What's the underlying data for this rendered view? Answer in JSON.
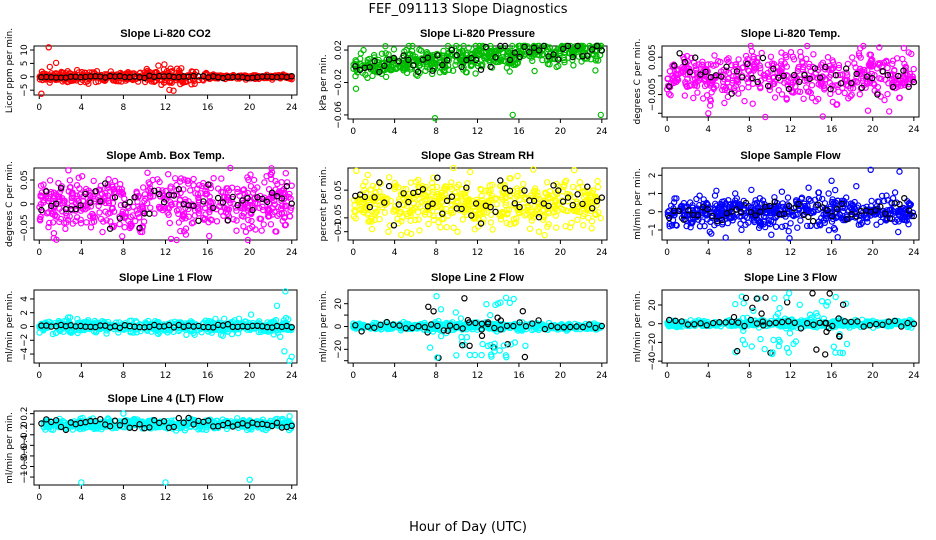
{
  "figure": {
    "title": "FEF_091113  Slope Diagnostics",
    "xlabel": "Hour of Day (UTC)"
  },
  "chart_data": [
    {
      "id": "co2",
      "type": "scatter",
      "title": "Slope Li-820 CO2",
      "ylabel": "Licor ppm per min.",
      "xticks": [
        0,
        4,
        8,
        12,
        16,
        20,
        24
      ],
      "xlim": [
        -0.5,
        24.5
      ],
      "yticks": [
        -5,
        0,
        5,
        10
      ],
      "ylim": [
        -6.8,
        11.5
      ],
      "color": "#ff0000",
      "series": [
        {
          "kind": "scatter",
          "values": [
            [
              0.2,
              -6.3
            ],
            [
              0.9,
              11.0
            ],
            [
              1.0,
              3.7
            ],
            [
              1.6,
              5.2
            ],
            [
              0.5,
              0.6
            ],
            [
              0.3,
              -1.2
            ],
            [
              2.1,
              1.8
            ],
            [
              3.0,
              -1.5
            ],
            [
              3.6,
              2.5
            ],
            [
              4.4,
              -2.0
            ],
            [
              5.2,
              1.6
            ],
            [
              6.0,
              -1.0
            ],
            [
              6.8,
              2.0
            ],
            [
              7.3,
              -1.6
            ],
            [
              8.5,
              1.2
            ],
            [
              9.4,
              -1.8
            ],
            [
              10.3,
              2.2
            ],
            [
              11.0,
              -1.4
            ],
            [
              11.8,
              1.0
            ],
            [
              12.6,
              -2.2
            ],
            [
              13.3,
              2.4
            ],
            [
              13.9,
              -1.6
            ],
            [
              14.6,
              1.8
            ],
            [
              15.2,
              -1.2
            ],
            [
              16.0,
              0.8
            ],
            [
              17.0,
              -0.6
            ],
            [
              18.5,
              0.4
            ],
            [
              20.0,
              -0.5
            ],
            [
              22.0,
              0.3
            ],
            [
              23.5,
              -0.3
            ]
          ]
        },
        {
          "kind": "band",
          "a": 0,
          "sd": 0.9,
          "sdProfile": "co2",
          "n": 500
        },
        {
          "kind": "line",
          "color": "#000000",
          "n": 52,
          "amp": 0.2
        }
      ]
    },
    {
      "id": "pressure",
      "type": "scatter",
      "title": "Slope Li-820 Pressure",
      "ylabel": "kPa per min.",
      "xticks": [
        0,
        4,
        8,
        12,
        16,
        20,
        24
      ],
      "xlim": [
        -0.5,
        24.5
      ],
      "yticks": [
        0.02,
        -0.02,
        -0.06
      ],
      "ylim": [
        -0.065,
        0.025
      ],
      "color": "#00bb00",
      "series": [
        {
          "kind": "scatter",
          "values": [
            [
              7.9,
              -0.064
            ],
            [
              15.4,
              -0.06
            ],
            [
              23.9,
              -0.06
            ],
            [
              1.0,
              0.02
            ],
            [
              18.0,
              0.02
            ]
          ]
        },
        {
          "kind": "band",
          "a": 0,
          "b": 0.0009,
          "sd": 0.008,
          "n": 520
        },
        {
          "kind": "line",
          "color": "#000000",
          "n": 52,
          "amp": 0.006,
          "a": 0,
          "b": 0.0009
        }
      ]
    },
    {
      "id": "temp",
      "type": "scatter",
      "title": "Slope Li-820 Temp.",
      "ylabel": "degrees C per min.",
      "xticks": [
        0,
        4,
        8,
        12,
        16,
        20,
        24
      ],
      "xlim": [
        -0.5,
        24.5
      ],
      "yticks": [
        0.005,
        -0.005
      ],
      "ytickExtra": [
        -0.01,
        0
      ],
      "ylim": [
        -0.011,
        0.008
      ],
      "color": "#ff00ff",
      "series": [
        {
          "kind": "scatter",
          "values": [
            [
              4.0,
              -0.01
            ],
            [
              21.6,
              -0.0095
            ]
          ]
        },
        {
          "kind": "band",
          "a": -0.0002,
          "sd": 0.0032,
          "n": 500
        },
        {
          "kind": "line",
          "color": "#000000",
          "n": 48,
          "amp": 0.0025
        }
      ]
    },
    {
      "id": "ambtemp",
      "type": "scatter",
      "title": "Slope Amb. Box Temp.",
      "ylabel": "degrees C per min.",
      "xticks": [
        0,
        4,
        8,
        12,
        16,
        20,
        24
      ],
      "xlim": [
        -0.5,
        24.5
      ],
      "yticks": [
        0.05,
        0,
        -0.05
      ],
      "ylim": [
        -0.075,
        0.075
      ],
      "color": "#ff00ff",
      "series": [
        {
          "kind": "band",
          "a": 0,
          "sd": 0.03,
          "n": 560
        },
        {
          "kind": "line",
          "color": "#000000",
          "n": 52,
          "amp": 0.025
        }
      ]
    },
    {
      "id": "rh",
      "type": "scatter",
      "title": "Slope Gas Stream RH",
      "ylabel": "percent per min.",
      "xticks": [
        0,
        4,
        8,
        12,
        16,
        20,
        24
      ],
      "xlim": [
        -0.5,
        24.5
      ],
      "yticks": [
        0.05,
        -0.05,
        -0.1
      ],
      "ylim": [
        -0.13,
        0.13
      ],
      "color": "#ffff00",
      "series": [
        {
          "kind": "scatter",
          "values": [
            [
              0.3,
              0.12
            ]
          ]
        },
        {
          "kind": "band",
          "a": 0,
          "sd": 0.042,
          "n": 560
        },
        {
          "kind": "line",
          "color": "#000000",
          "n": 52,
          "amp": 0.035
        }
      ]
    },
    {
      "id": "sample",
      "type": "scatter",
      "title": "Slope Sample Flow",
      "ylabel": "ml/min per min.",
      "xticks": [
        0,
        4,
        8,
        12,
        16,
        20,
        24
      ],
      "xlim": [
        -0.5,
        24.5
      ],
      "yticks": [
        2,
        1,
        0,
        -1
      ],
      "ylim": [
        -1.55,
        2.4
      ],
      "color": "#0000ff",
      "series": [
        {
          "kind": "scatter",
          "values": [
            [
              11.9,
              -1.45
            ],
            [
              19.8,
              2.3
            ],
            [
              22.6,
              2.2
            ],
            [
              4.3,
              -1.2
            ],
            [
              16.0,
              1.7
            ],
            [
              18.4,
              1.4
            ],
            [
              8.2,
              1.2
            ]
          ]
        },
        {
          "kind": "band",
          "a": 0,
          "sd": 0.42,
          "n": 560
        },
        {
          "kind": "line",
          "color": "#000000",
          "n": 52,
          "amp": 0.3
        }
      ]
    },
    {
      "id": "line1",
      "type": "scatter",
      "title": "Slope Line 1 Flow",
      "ylabel": "ml/min per min.",
      "xticks": [
        0,
        4,
        8,
        12,
        16,
        20,
        24
      ],
      "xlim": [
        -0.5,
        24.5
      ],
      "yticks": [
        4,
        2,
        0,
        -2,
        -4
      ],
      "ylim": [
        -5.3,
        5.3
      ],
      "color": "#00ffff",
      "series": [
        {
          "kind": "scatter",
          "values": [
            [
              23.4,
              5.1
            ],
            [
              22.6,
              3.0
            ],
            [
              22.9,
              -1.5
            ],
            [
              23.3,
              -3.6
            ],
            [
              23.8,
              -5.0
            ],
            [
              24.0,
              -4.4
            ]
          ]
        },
        {
          "kind": "band",
          "a": 0,
          "sd": 0.45,
          "n": 540
        },
        {
          "kind": "line",
          "color": "#000000",
          "n": 52,
          "amp": 0.1
        }
      ]
    },
    {
      "id": "line2",
      "type": "scatter",
      "title": "Slope Line 2 Flow",
      "ylabel": "ml/min per min.",
      "xticks": [
        0,
        4,
        8,
        12,
        16,
        20,
        24
      ],
      "xlim": [
        -0.5,
        24.5
      ],
      "yticks": [
        20,
        0,
        -20
      ],
      "ytickExtra": [
        -30,
        -10,
        10
      ],
      "ylim": [
        -32,
        32
      ],
      "color": "#00ffff",
      "series": [
        {
          "kind": "band",
          "a": 0,
          "sd": 1.5,
          "n": 520
        },
        {
          "kind": "spread",
          "lo": 7,
          "hi": 17,
          "amp": 28,
          "n": 70,
          "blackFrac": 0.35
        },
        {
          "kind": "line",
          "color": "#000000",
          "n": 40,
          "amp": 2
        }
      ]
    },
    {
      "id": "line3",
      "type": "scatter",
      "title": "Slope Line 3 Flow",
      "ylabel": "ml/min per min.",
      "xticks": [
        0,
        4,
        8,
        12,
        16,
        20,
        24
      ],
      "xlim": [
        -0.5,
        24.5
      ],
      "yticks": [
        20,
        0,
        -20,
        -40
      ],
      "ylim": [
        -42,
        36
      ],
      "color": "#00ffff",
      "series": [
        {
          "kind": "band",
          "a": 0,
          "sd": 1.8,
          "n": 520
        },
        {
          "kind": "spread",
          "lo": 6.5,
          "hi": 17.5,
          "amp": 33,
          "n": 70,
          "blackFrac": 0.35
        },
        {
          "kind": "line",
          "color": "#000000",
          "n": 40,
          "amp": 2
        }
      ]
    },
    {
      "id": "line4",
      "type": "scatter",
      "title": "Slope Line 4 (LT) Flow",
      "ylabel": "ml/min per min.",
      "xticks": [
        0,
        4,
        8,
        12,
        16,
        20,
        24
      ],
      "xlim": [
        -0.5,
        24.5
      ],
      "yticks": [
        0.2,
        0,
        -0.2,
        -0.4,
        -0.6,
        -0.8,
        -1.0
      ],
      "ylim": [
        -1.15,
        0.25
      ],
      "color": "#00ffff",
      "series": [
        {
          "kind": "scatter",
          "values": [
            [
              4.0,
              -1.1
            ],
            [
              12.0,
              -1.1
            ],
            [
              20.0,
              -1.05
            ],
            [
              8.0,
              0.2
            ],
            [
              23.8,
              0.15
            ]
          ]
        },
        {
          "kind": "band",
          "a": 0,
          "sd": 0.045,
          "n": 540
        },
        {
          "kind": "line",
          "color": "#000000",
          "n": 52,
          "amp": 0.06
        }
      ]
    }
  ]
}
